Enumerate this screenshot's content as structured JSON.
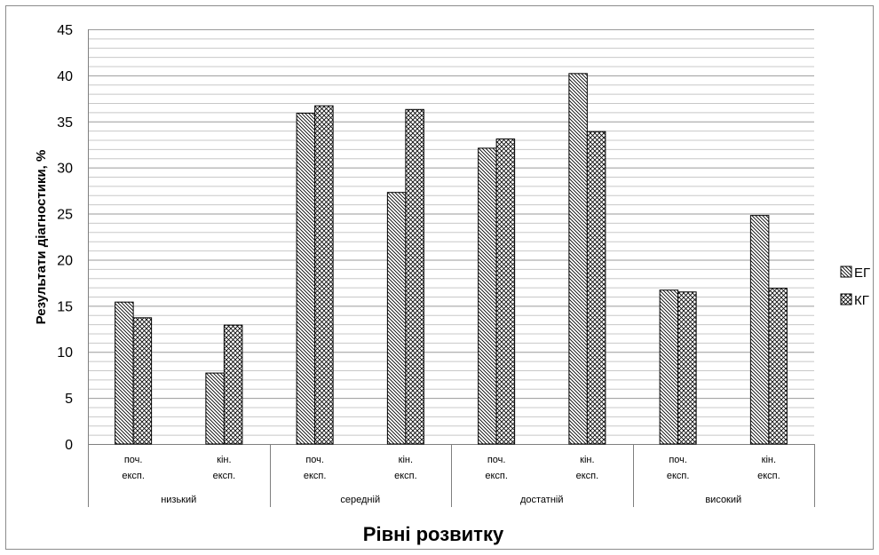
{
  "chart_data": {
    "type": "bar",
    "xlabel": "Рівні розвитку",
    "ylabel": "Результати діагностики, %",
    "ylim": [
      0,
      45
    ],
    "yticks": [
      0,
      5,
      10,
      15,
      20,
      25,
      30,
      35,
      40,
      45
    ],
    "grid": true,
    "legend_position": "right",
    "groups": [
      {
        "label": "низький",
        "categories": [
          "поч. експ.",
          "кін. експ."
        ]
      },
      {
        "label": "середній",
        "categories": [
          "поч. експ.",
          "кін. експ."
        ]
      },
      {
        "label": "достатній",
        "categories": [
          "поч. експ.",
          "кін. експ."
        ]
      },
      {
        "label": "високий",
        "categories": [
          "поч. експ.",
          "кін. експ."
        ]
      }
    ],
    "categories": [
      "поч. експ.",
      "кін. експ.",
      "поч. експ.",
      "кін. експ.",
      "поч. експ.",
      "кін. експ.",
      "поч. експ.",
      "кін. експ."
    ],
    "series": [
      {
        "name": "ЕГ",
        "pattern": "diagonal-lines",
        "values": [
          15.4,
          7.7,
          35.9,
          27.3,
          32.1,
          40.2,
          16.7,
          24.8
        ]
      },
      {
        "name": "КГ",
        "pattern": "crosshatch",
        "values": [
          13.7,
          12.9,
          36.7,
          36.3,
          33.1,
          33.9,
          16.5,
          16.9
        ]
      }
    ]
  }
}
